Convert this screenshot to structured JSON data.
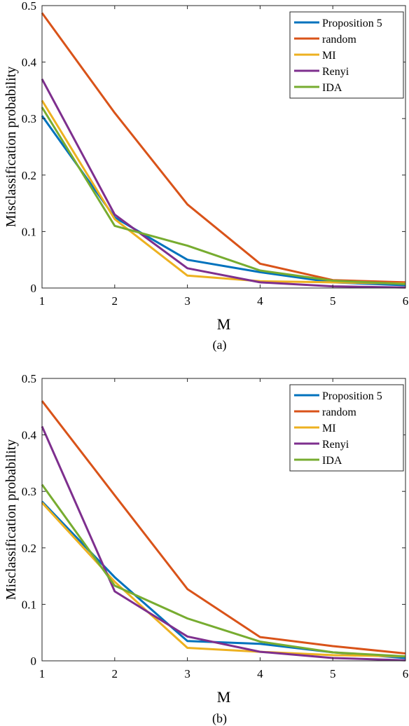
{
  "chart_data": [
    {
      "type": "line",
      "caption": "(a)",
      "xlabel": "M",
      "ylabel": "Misclassification probability",
      "xlim": [
        1,
        6
      ],
      "ylim": [
        0,
        0.5
      ],
      "x": [
        1,
        2,
        3,
        4,
        5,
        6
      ],
      "xticks": [
        "1",
        "2",
        "3",
        "4",
        "5",
        "6"
      ],
      "yticks": [
        "0",
        "0.1",
        "0.2",
        "0.3",
        "0.4",
        "0.5"
      ],
      "grid": false,
      "legend_position": "top-right",
      "series": [
        {
          "name": "Proposition 5",
          "color": "#0072BD",
          "values": [
            0.305,
            0.125,
            0.05,
            0.028,
            0.01,
            0.005
          ]
        },
        {
          "name": "random",
          "color": "#D95319",
          "values": [
            0.487,
            0.31,
            0.148,
            0.043,
            0.014,
            0.01
          ]
        },
        {
          "name": "MI",
          "color": "#EDB120",
          "values": [
            0.332,
            0.122,
            0.022,
            0.012,
            0.01,
            0.008
          ]
        },
        {
          "name": "Renyi",
          "color": "#7E2F8E",
          "values": [
            0.37,
            0.13,
            0.035,
            0.01,
            0.003,
            0.001
          ]
        },
        {
          "name": "IDA",
          "color": "#77AC30",
          "values": [
            0.32,
            0.11,
            0.075,
            0.031,
            0.013,
            0.007
          ]
        }
      ]
    },
    {
      "type": "line",
      "caption": "(b)",
      "xlabel": "M",
      "ylabel": "Misclassification probability",
      "xlim": [
        1,
        6
      ],
      "ylim": [
        0,
        0.5
      ],
      "x": [
        1,
        2,
        3,
        4,
        5,
        6
      ],
      "xticks": [
        "1",
        "2",
        "3",
        "4",
        "5",
        "6"
      ],
      "yticks": [
        "0",
        "0.1",
        "0.2",
        "0.3",
        "0.4",
        "0.5"
      ],
      "grid": false,
      "legend_position": "top-right",
      "series": [
        {
          "name": "Proposition 5",
          "color": "#0072BD",
          "values": [
            0.282,
            0.148,
            0.035,
            0.03,
            0.015,
            0.005
          ]
        },
        {
          "name": "random",
          "color": "#D95319",
          "values": [
            0.46,
            0.293,
            0.127,
            0.042,
            0.026,
            0.013
          ]
        },
        {
          "name": "MI",
          "color": "#EDB120",
          "values": [
            0.28,
            0.14,
            0.023,
            0.016,
            0.01,
            0.008
          ]
        },
        {
          "name": "Renyi",
          "color": "#7E2F8E",
          "values": [
            0.415,
            0.123,
            0.043,
            0.016,
            0.005,
            0.001
          ]
        },
        {
          "name": "IDA",
          "color": "#77AC30",
          "values": [
            0.312,
            0.133,
            0.075,
            0.034,
            0.015,
            0.008
          ]
        }
      ]
    }
  ]
}
